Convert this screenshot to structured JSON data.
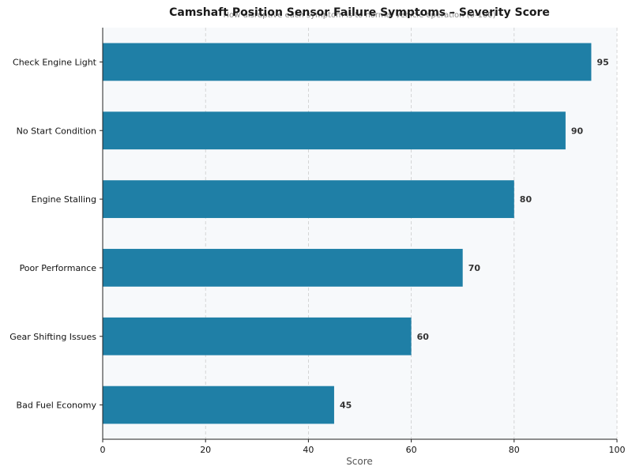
{
  "chart_data": {
    "type": "bar",
    "orientation": "horizontal",
    "title": "Camshaft Position Sensor Failure Symptoms – Severity Score",
    "subtitle": "How disruptive each symptom is to normal vehicle operation (0-100)",
    "xlabel": "Score",
    "ylabel": "",
    "xlim": [
      0,
      100
    ],
    "xticks": [
      0,
      20,
      40,
      60,
      80,
      100
    ],
    "grid": "x-dashed",
    "categories": [
      "Check Engine Light",
      "No Start Condition",
      "Engine Stalling",
      "Poor Performance",
      "Gear Shifting Issues",
      "Bad Fuel Economy"
    ],
    "values": [
      95,
      90,
      80,
      70,
      60,
      45
    ],
    "bar_color": "#1f7fa6",
    "plot_background": "#f7f9fb"
  }
}
